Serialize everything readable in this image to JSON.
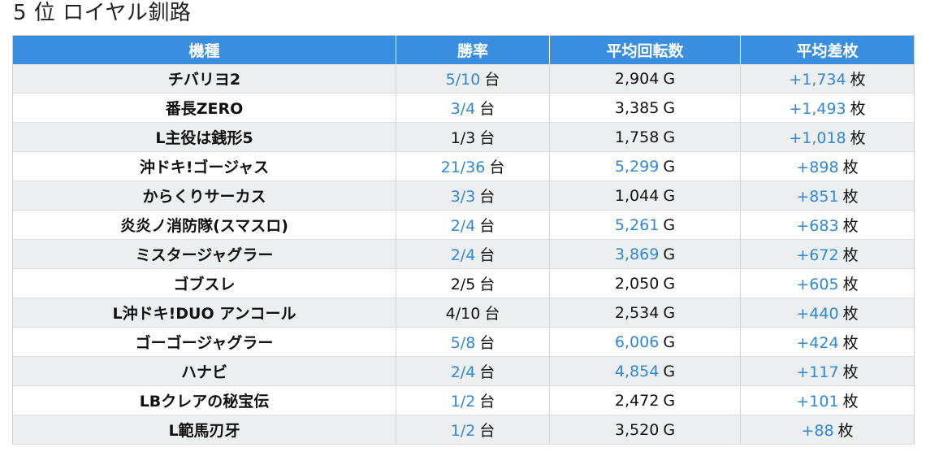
{
  "title": "5 位 ロイヤル釧路",
  "colors": {
    "header_bg": "#3a8ee0",
    "header_text": "#ffffff",
    "highlight_value": "#2f88d8",
    "row_alt": "#edeef0"
  },
  "table": {
    "headers": [
      "機種",
      "勝率",
      "平均回転数",
      "平均差枚"
    ],
    "units": {
      "win_rate": "台",
      "spins": "G",
      "diff": "枚"
    },
    "rows": [
      {
        "machine": "チバリヨ2",
        "win_rate": "5/10",
        "win_rate_highlight": true,
        "spins": "2,904",
        "spins_highlight": false,
        "diff": "+1,734",
        "diff_highlight": true
      },
      {
        "machine": "番長ZERO",
        "win_rate": "3/4",
        "win_rate_highlight": true,
        "spins": "3,385",
        "spins_highlight": false,
        "diff": "+1,493",
        "diff_highlight": true
      },
      {
        "machine": "L主役は銭形5",
        "win_rate": "1/3",
        "win_rate_highlight": false,
        "spins": "1,758",
        "spins_highlight": false,
        "diff": "+1,018",
        "diff_highlight": true
      },
      {
        "machine": "沖ドキ!ゴージャス",
        "win_rate": "21/36",
        "win_rate_highlight": true,
        "spins": "5,299",
        "spins_highlight": true,
        "diff": "+898",
        "diff_highlight": true
      },
      {
        "machine": "からくりサーカス",
        "win_rate": "3/3",
        "win_rate_highlight": true,
        "spins": "1,044",
        "spins_highlight": false,
        "diff": "+851",
        "diff_highlight": true
      },
      {
        "machine": "炎炎ノ消防隊(スマスロ)",
        "win_rate": "2/4",
        "win_rate_highlight": true,
        "spins": "5,261",
        "spins_highlight": true,
        "diff": "+683",
        "diff_highlight": true
      },
      {
        "machine": "ミスタージャグラー",
        "win_rate": "2/4",
        "win_rate_highlight": true,
        "spins": "3,869",
        "spins_highlight": true,
        "diff": "+672",
        "diff_highlight": true
      },
      {
        "machine": "ゴブスレ",
        "win_rate": "2/5",
        "win_rate_highlight": false,
        "spins": "2,050",
        "spins_highlight": false,
        "diff": "+605",
        "diff_highlight": true
      },
      {
        "machine": "L沖ドキ!DUO アンコール",
        "win_rate": "4/10",
        "win_rate_highlight": false,
        "spins": "2,534",
        "spins_highlight": false,
        "diff": "+440",
        "diff_highlight": true
      },
      {
        "machine": "ゴーゴージャグラー",
        "win_rate": "5/8",
        "win_rate_highlight": true,
        "spins": "6,006",
        "spins_highlight": true,
        "diff": "+424",
        "diff_highlight": true
      },
      {
        "machine": "ハナビ",
        "win_rate": "2/4",
        "win_rate_highlight": true,
        "spins": "4,854",
        "spins_highlight": true,
        "diff": "+117",
        "diff_highlight": true
      },
      {
        "machine": "LBクレアの秘宝伝",
        "win_rate": "1/2",
        "win_rate_highlight": true,
        "spins": "2,472",
        "spins_highlight": false,
        "diff": "+101",
        "diff_highlight": true
      },
      {
        "machine": "L範馬刃牙",
        "win_rate": "1/2",
        "win_rate_highlight": true,
        "spins": "3,520",
        "spins_highlight": false,
        "diff": "+88",
        "diff_highlight": true
      }
    ]
  }
}
